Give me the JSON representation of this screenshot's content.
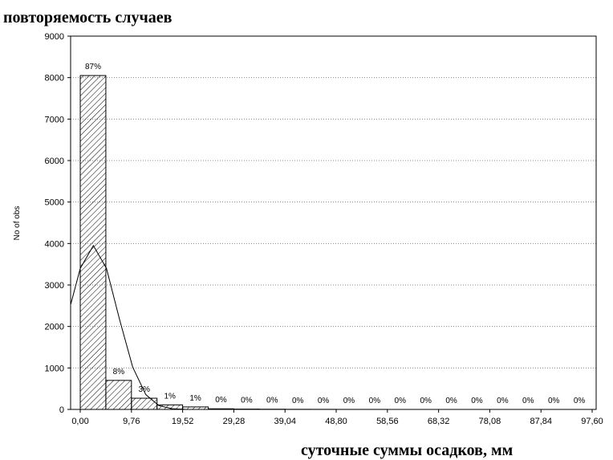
{
  "chart_data": {
    "type": "histogram",
    "title": "повторяемость случаев",
    "x_label": "суточные суммы осадков, мм",
    "y_label": "No of obs",
    "bins": [
      0,
      4.88,
      9.76,
      14.64,
      19.52,
      24.4,
      29.28,
      34.16,
      39.04,
      43.92,
      48.8,
      53.68,
      58.56,
      63.44,
      68.32,
      73.2,
      78.08,
      82.96,
      87.84,
      92.72,
      97.6
    ],
    "values": [
      8050,
      700,
      270,
      110,
      60,
      15,
      8,
      5,
      3,
      2,
      1,
      1,
      0,
      0,
      0,
      0,
      0,
      0,
      0,
      0
    ],
    "bar_labels": [
      "87%",
      "8%",
      "3%",
      "1%",
      "1%",
      "0%",
      "0%",
      "0%",
      "0%",
      "0%",
      "0%",
      "0%",
      "0%",
      "0%",
      "0%",
      "0%",
      "0%",
      "0%",
      "0%",
      "0%"
    ],
    "color": "#ffffff",
    "curve": {
      "x": [
        -1.8,
        0,
        2.5,
        5,
        7.5,
        10,
        12.5,
        15,
        17.5,
        20
      ],
      "values": [
        2540,
        3400,
        3950,
        3400,
        2165,
        1020,
        357,
        92,
        18,
        2
      ],
      "color": "#000000"
    },
    "xlim": [
      -1.84,
      98.36
    ],
    "ylim": [
      0,
      9000
    ],
    "xticks": [
      {
        "value": 0,
        "label": "0,00"
      },
      {
        "value": 9.76,
        "label": "9,76"
      },
      {
        "value": 19.52,
        "label": "19,52"
      },
      {
        "value": 29.28,
        "label": "29,28"
      },
      {
        "value": 39.04,
        "label": "39,04"
      },
      {
        "value": 48.8,
        "label": "48,80"
      },
      {
        "value": 58.56,
        "label": "58,56"
      },
      {
        "value": 68.32,
        "label": "68,32"
      },
      {
        "value": 78.08,
        "label": "78,08"
      },
      {
        "value": 87.84,
        "label": "87,84"
      },
      {
        "value": 97.6,
        "label": "97,60"
      }
    ],
    "yticks": [
      0,
      1000,
      2000,
      3000,
      4000,
      5000,
      6000,
      7000,
      8000,
      9000
    ],
    "grid": true
  }
}
